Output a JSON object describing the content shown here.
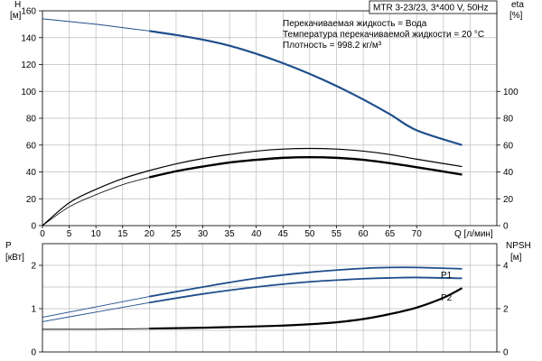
{
  "chart_data": [
    {
      "type": "line",
      "title": "MTR 3-23/23, 3*400 V, 50Hz",
      "info": [
        "Перекачиваемая жидкость = Вода",
        "Температура перекачиваемой жидкости = 20 °C",
        "Плотность = 998.2 кг/м³"
      ],
      "xlabel": "Q [л/мин]",
      "xlim": [
        0,
        85
      ],
      "xticks": [
        0,
        5,
        10,
        15,
        20,
        25,
        30,
        35,
        40,
        45,
        50,
        55,
        60,
        65,
        70
      ],
      "ylabel_left": [
        "H",
        "[м]"
      ],
      "ylim_left": [
        0,
        160
      ],
      "yticks_left": [
        0,
        20,
        40,
        60,
        80,
        100,
        120,
        140,
        160
      ],
      "ylabel_right": [
        "eta",
        "[%]"
      ],
      "ylim_right": [
        0,
        160
      ],
      "yticks_right": [
        0,
        20,
        40,
        60,
        80,
        100
      ],
      "grid": true,
      "series": [
        {
          "axis": "left",
          "color": "#1f4e8c",
          "x": [
            0,
            5,
            10,
            15,
            20,
            25,
            30,
            35,
            40,
            45,
            50,
            55,
            60,
            65,
            70,
            78.5
          ],
          "y": [
            154,
            152,
            150,
            147.5,
            145,
            142,
            138.5,
            134,
            128,
            121,
            113,
            104,
            94,
            83,
            71,
            60
          ]
        },
        {
          "axis": "right",
          "color": "#000000",
          "x": [
            0,
            5,
            10,
            15,
            20,
            25,
            30,
            35,
            40,
            45,
            50,
            55,
            60,
            65,
            70,
            78.5
          ],
          "y": [
            0,
            17,
            27,
            35,
            41,
            46,
            50,
            53,
            55.5,
            57,
            57.5,
            57,
            55.5,
            53,
            49.5,
            44
          ]
        },
        {
          "axis": "right",
          "color": "#000000",
          "x": [
            0,
            5,
            10,
            15,
            20,
            25,
            30,
            35,
            40,
            45,
            50,
            55,
            60,
            65,
            70,
            78.5
          ],
          "y": [
            0,
            14,
            23,
            30.5,
            36,
            40.5,
            44,
            47,
            49,
            50.5,
            51,
            50.5,
            49,
            46.5,
            43.5,
            38
          ]
        }
      ]
    },
    {
      "type": "line",
      "xlabel": "",
      "xlim": [
        0,
        85
      ],
      "ylabel_left": [
        "P",
        "[кВт]"
      ],
      "ylim_left": [
        0,
        2.5
      ],
      "yticks_left": [
        0,
        1,
        2
      ],
      "ylabel_right": [
        "NPSH",
        "[м]"
      ],
      "ylim_right": [
        0,
        5
      ],
      "yticks_right": [
        0,
        2,
        4
      ],
      "grid": true,
      "series": [
        {
          "name": "P1",
          "axis": "left",
          "color": "#1f4e8c",
          "x": [
            0,
            10,
            20,
            30,
            40,
            50,
            60,
            65,
            70,
            78.5
          ],
          "y": [
            0.8,
            1.04,
            1.28,
            1.5,
            1.7,
            1.84,
            1.93,
            1.95,
            1.95,
            1.92
          ]
        },
        {
          "name": "P2",
          "axis": "left",
          "color": "#1f4e8c",
          "x": [
            0,
            10,
            20,
            30,
            40,
            50,
            60,
            65,
            70,
            78.5
          ],
          "y": [
            0.7,
            0.92,
            1.14,
            1.34,
            1.5,
            1.62,
            1.69,
            1.71,
            1.72,
            1.7
          ]
        },
        {
          "axis": "right",
          "color": "#000000",
          "x": [
            0,
            10,
            20,
            30,
            40,
            45,
            50,
            55,
            60,
            65,
            70,
            75,
            78.5
          ],
          "y": [
            1.05,
            1.05,
            1.08,
            1.12,
            1.18,
            1.22,
            1.28,
            1.37,
            1.52,
            1.75,
            2.05,
            2.5,
            2.95
          ]
        }
      ]
    }
  ]
}
